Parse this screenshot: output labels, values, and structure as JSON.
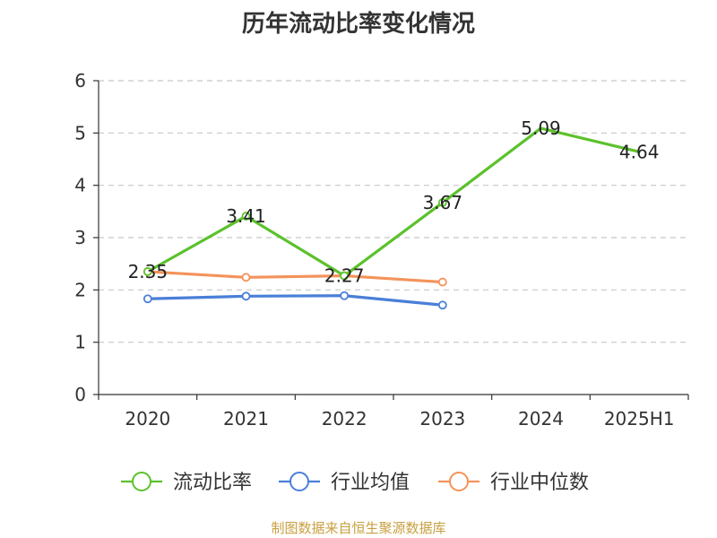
{
  "title": "历年流动比率变化情况",
  "source": "制图数据来自恒生聚源数据库",
  "chart_data": {
    "type": "line",
    "categories": [
      "2020",
      "2021",
      "2022",
      "2023",
      "2024",
      "2025H1"
    ],
    "ylim": [
      0,
      6
    ],
    "yticks": [
      0,
      1,
      2,
      3,
      4,
      5,
      6
    ],
    "grid": true,
    "legend_position": "bottom",
    "series": [
      {
        "name": "流动比率",
        "color": "#5cc12c",
        "values": [
          2.35,
          3.41,
          2.27,
          3.67,
          5.09,
          4.64
        ],
        "labels": [
          "2.35",
          "3.41",
          "2.27",
          "3.67",
          "5.09",
          "4.64"
        ],
        "markers": [
          true,
          true,
          true,
          true,
          false,
          false
        ]
      },
      {
        "name": "行业均值",
        "color": "#4a7fd8",
        "values": [
          1.83,
          1.88,
          1.89,
          1.71,
          null,
          null
        ]
      },
      {
        "name": "行业中位数",
        "color": "#f4935b",
        "values": [
          2.35,
          2.24,
          2.27,
          2.15,
          null,
          null
        ]
      }
    ]
  }
}
